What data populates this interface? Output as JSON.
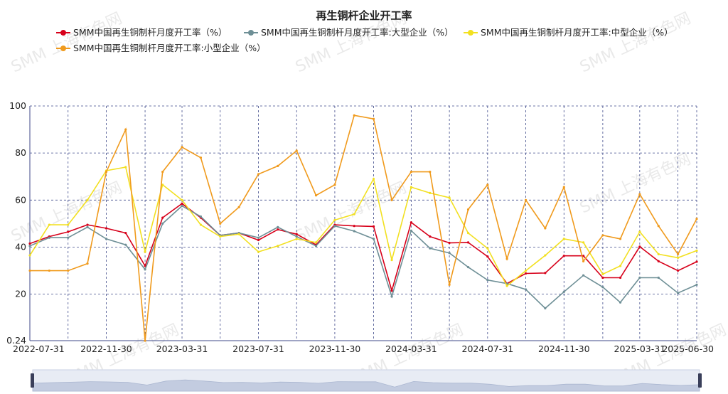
{
  "chart_data": {
    "type": "line",
    "title": "再生铜杆企业开工率",
    "xlabel": "",
    "ylabel": "",
    "ylim": [
      0.24,
      100
    ],
    "y_ticks": [
      "0.24",
      "20",
      "40",
      "60",
      "80",
      "100"
    ],
    "x_tick_labels": [
      "2022-07-31",
      "2022-11-30",
      "2023-03-31",
      "2023-07-31",
      "2023-11-30",
      "2024-03-31",
      "2024-07-31",
      "2024-11-30",
      "2025-03-31",
      "2025-06-30"
    ],
    "x": [
      "2022-07-31",
      "2022-08-31",
      "2022-09-30",
      "2022-10-31",
      "2022-11-30",
      "2022-12-31",
      "2023-01-31",
      "2023-02-28",
      "2023-03-31",
      "2023-04-30",
      "2023-05-31",
      "2023-06-30",
      "2023-07-31",
      "2023-08-31",
      "2023-09-30",
      "2023-10-31",
      "2023-11-30",
      "2023-12-31",
      "2024-01-31",
      "2024-02-29",
      "2024-03-31",
      "2024-04-30",
      "2024-05-31",
      "2024-06-30",
      "2024-07-31",
      "2024-08-31",
      "2024-09-30",
      "2024-10-31",
      "2024-11-30",
      "2024-12-31",
      "2025-01-31",
      "2025-02-28",
      "2025-03-31",
      "2025-04-30",
      "2025-05-31",
      "2025-06-30"
    ],
    "series": [
      {
        "name": "SMM中国再生铜制杆月度开工率（%）",
        "color": "#d7001a",
        "values": [
          41.5,
          44.5,
          46.5,
          49.5,
          48,
          46,
          32,
          52.5,
          58.5,
          52.5,
          45,
          46,
          43,
          47.5,
          45.5,
          41,
          49.5,
          49,
          48.8,
          21.5,
          50.5,
          44.5,
          41.8,
          42,
          36,
          24.5,
          28.8,
          29,
          36.3,
          36.3,
          27,
          27,
          40.2,
          34,
          30,
          33.8
        ]
      },
      {
        "name": "SMM中国再生铜制杆月度开工率:大型企业（%）",
        "color": "#6e8f96",
        "values": [
          40.5,
          44,
          44,
          48.5,
          43.5,
          41,
          30.5,
          50,
          57.5,
          53,
          45,
          46,
          44,
          48.5,
          44.5,
          40.5,
          49,
          46.8,
          43.5,
          19,
          47,
          39.5,
          37.5,
          31.5,
          26,
          24.5,
          22,
          14,
          21,
          28,
          23,
          16.5,
          27,
          27,
          20.5,
          24
        ]
      },
      {
        "name": "SMM中国再生铜制杆月度开工率:中型企业（%）",
        "color": "#f2e020",
        "values": [
          36.5,
          49.5,
          49.5,
          60,
          72.5,
          74,
          38,
          66.5,
          60,
          49.5,
          44.5,
          45.5,
          38,
          40.5,
          43.5,
          42,
          51.5,
          54,
          69,
          34.5,
          65.5,
          63,
          61,
          46,
          39.5,
          23.5,
          30,
          36.5,
          43.5,
          42,
          28.5,
          32,
          46.5,
          37,
          35.5,
          38.5
        ]
      },
      {
        "name": "SMM中国再生铜制杆月度开工率:小型企业（%）",
        "color": "#f09a1c",
        "values": [
          30,
          30,
          30,
          33,
          72,
          90,
          0.24,
          72,
          82.5,
          78,
          50,
          57,
          71,
          74.5,
          81,
          62,
          66.5,
          96,
          94.5,
          60,
          72,
          72,
          24,
          56,
          66.5,
          35,
          60,
          48,
          65.5,
          34,
          45,
          43.5,
          62.5,
          49,
          37,
          52
        ]
      }
    ]
  },
  "watermark_text": "SMM 上海有色网"
}
